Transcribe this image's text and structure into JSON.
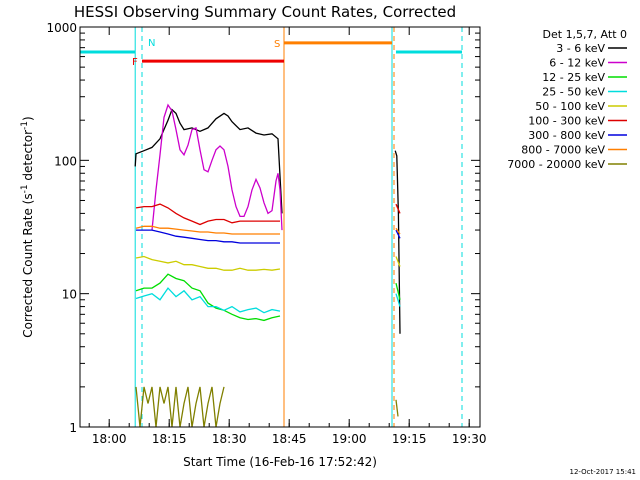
{
  "chart_data": {
    "type": "line",
    "title": "HESSI Observing Summary Count Rates, Corrected",
    "xlabel": "Start Time (16-Feb-16 17:52:42)",
    "ylabel": "Corrected Count Rate (s",
    "ylabel_sup1": "-1",
    "ylabel_mid": " detector",
    "ylabel_sup2": "-1",
    "ylabel_end": ")",
    "x_unit": "minutes since 17:52:42",
    "xlim": [
      0,
      100
    ],
    "ylim": [
      1,
      1000
    ],
    "y_scale": "log",
    "x_ticks": [
      {
        "label": "18:00",
        "value": 7.3
      },
      {
        "label": "18:15",
        "value": 22.3
      },
      {
        "label": "18:30",
        "value": 37.3
      },
      {
        "label": "18:45",
        "value": 52.3
      },
      {
        "label": "19:00",
        "value": 67.3
      },
      {
        "label": "19:15",
        "value": 82.3
      },
      {
        "label": "19:30",
        "value": 97.3
      }
    ],
    "y_ticks": [
      {
        "label": "1",
        "value": 1
      },
      {
        "label": "10",
        "value": 10
      },
      {
        "label": "100",
        "value": 100
      },
      {
        "label": "1000",
        "value": 1000
      }
    ],
    "legend_header": "Det 1,5,7, Att 0",
    "legend_position": "right",
    "series": [
      {
        "name": "3 - 6 keV",
        "color": "#000000",
        "x": [
          13.8,
          14,
          16,
          18,
          20,
          22,
          23,
          24,
          25,
          26,
          28,
          30,
          32,
          34,
          36,
          37,
          38,
          40,
          42,
          44,
          46,
          48,
          49.5,
          50.5
        ],
        "y": [
          90,
          112,
          118,
          125,
          145,
          200,
          240,
          225,
          190,
          170,
          175,
          165,
          175,
          205,
          225,
          215,
          195,
          170,
          175,
          160,
          155,
          158,
          145,
          40
        ],
        "x2": [
          78.8,
          79.2,
          79.6,
          80
        ],
        "y2": [
          118,
          108,
          40,
          5
        ]
      },
      {
        "name": "6 - 12 keV",
        "color": "#cc00cc",
        "x": [
          18,
          19,
          20,
          21,
          22,
          23,
          24,
          25,
          26,
          27,
          28,
          29,
          30,
          31,
          32,
          33,
          34,
          35,
          36,
          37,
          38,
          39,
          40,
          41,
          42,
          43,
          44,
          45,
          46,
          47,
          48,
          49,
          49.5,
          50,
          50.5
        ],
        "y": [
          30,
          60,
          110,
          210,
          260,
          235,
          170,
          120,
          110,
          130,
          170,
          175,
          120,
          85,
          82,
          100,
          120,
          128,
          120,
          90,
          60,
          45,
          38,
          38,
          45,
          60,
          72,
          62,
          48,
          40,
          42,
          70,
          80,
          60,
          30
        ]
      },
      {
        "name": "12 - 25 keV",
        "color": "#00dd00",
        "x": [
          14,
          16,
          18,
          20,
          22,
          24,
          26,
          28,
          30,
          32,
          34,
          36,
          38,
          40,
          42,
          44,
          46,
          48,
          50
        ],
        "y": [
          10.5,
          11,
          11,
          12,
          14,
          13,
          12.5,
          11,
          10.5,
          8.5,
          7.8,
          7.5,
          7.0,
          6.6,
          6.4,
          6.5,
          6.3,
          6.6,
          6.8
        ],
        "x2": [
          79,
          80
        ],
        "y2": [
          12,
          9
        ]
      },
      {
        "name": "25 - 50 keV",
        "color": "#00dddd",
        "x": [
          14,
          16,
          18,
          20,
          22,
          24,
          26,
          28,
          30,
          32,
          34,
          36,
          38,
          40,
          42,
          44,
          46,
          48,
          50
        ],
        "y": [
          9.2,
          9.6,
          10,
          9.0,
          11,
          9.5,
          10.5,
          9.0,
          9.5,
          8.0,
          8.0,
          7.5,
          8.0,
          7.3,
          7.6,
          7.8,
          7.2,
          7.6,
          7.4
        ],
        "x2": [
          79,
          80
        ],
        "y2": [
          10,
          8
        ]
      },
      {
        "name": "50 - 100 keV",
        "color": "#cccc00",
        "x": [
          14,
          16,
          18,
          20,
          22,
          24,
          26,
          28,
          30,
          32,
          34,
          36,
          38,
          40,
          42,
          44,
          46,
          48,
          50
        ],
        "y": [
          18.5,
          19,
          18,
          17.5,
          17,
          17.5,
          16.5,
          16.5,
          16,
          15.5,
          15.5,
          15,
          15,
          15.5,
          15,
          15,
          15.2,
          15,
          15.3
        ],
        "x2": [
          79,
          80
        ],
        "y2": [
          19,
          16
        ]
      },
      {
        "name": "100 - 300 keV",
        "color": "#dd0000",
        "x": [
          14,
          16,
          18,
          20,
          22,
          24,
          26,
          28,
          30,
          32,
          34,
          36,
          38,
          40,
          42,
          44,
          46,
          48,
          50
        ],
        "y": [
          44,
          45,
          45,
          47,
          44,
          40,
          37,
          35,
          33,
          35,
          36,
          36,
          34,
          35,
          35,
          35,
          35,
          35,
          35
        ],
        "x2": [
          79,
          80
        ],
        "y2": [
          47,
          40
        ]
      },
      {
        "name": "300 - 800 keV",
        "color": "#0000dd",
        "x": [
          14,
          16,
          18,
          20,
          22,
          24,
          26,
          28,
          30,
          32,
          34,
          36,
          38,
          40,
          42,
          44,
          46,
          48,
          50
        ],
        "y": [
          30,
          30,
          30,
          29,
          28,
          27,
          26.5,
          26,
          25.5,
          25,
          25,
          24.5,
          24.5,
          24,
          24,
          24,
          24,
          24,
          24
        ],
        "x2": [
          79,
          80
        ],
        "y2": [
          30,
          26
        ]
      },
      {
        "name": "800 - 7000 keV",
        "color": "#ff7f00",
        "x": [
          14,
          16,
          18,
          20,
          22,
          24,
          26,
          28,
          30,
          32,
          34,
          36,
          38,
          40,
          42,
          44,
          46,
          48,
          50
        ],
        "y": [
          31,
          32,
          32,
          31,
          31,
          30.5,
          30,
          29.5,
          29,
          29,
          28.5,
          28.5,
          28,
          28,
          28,
          28,
          28,
          28,
          28
        ],
        "x2": [
          79,
          80
        ],
        "y2": [
          31,
          28
        ]
      },
      {
        "name": "7000 - 20000 keV",
        "color": "#808000",
        "x": [
          14,
          15,
          16,
          17,
          18,
          19,
          20,
          21,
          22,
          23,
          24,
          25,
          26,
          27,
          28,
          29,
          30,
          31,
          32,
          33,
          34,
          35,
          36
        ],
        "y": [
          2,
          1,
          2,
          1.5,
          2,
          1,
          2,
          1.5,
          2,
          1,
          2,
          1,
          1.5,
          2,
          1,
          1.5,
          2,
          1,
          1.5,
          2,
          1,
          1.5,
          2
        ],
        "x2": [
          79,
          79.5
        ],
        "y2": [
          1.6,
          1.2
        ]
      }
    ],
    "intervals": [
      {
        "label": "",
        "color": "#00dddd",
        "x1": 0,
        "x2": 13.8,
        "level": 650
      },
      {
        "label": "N",
        "color": "#00dddd",
        "x1": 79,
        "x2": 95.5,
        "level": 650,
        "label_x": 15.5
      },
      {
        "label": "F",
        "color": "#ee0000",
        "x1": 15.5,
        "x2": 51,
        "level": 555
      },
      {
        "label": "S",
        "color": "#ff7f00",
        "x1": 51,
        "x2": 78,
        "level": 760
      }
    ],
    "vlines": [
      {
        "x": 13.8,
        "color": "#00dddd",
        "style": "solid"
      },
      {
        "x": 15.5,
        "color": "#00dddd",
        "style": "dashed"
      },
      {
        "x": 51,
        "color": "#ff7f00",
        "style": "solid"
      },
      {
        "x": 78,
        "color": "#00dddd",
        "style": "solid"
      },
      {
        "x": 78.5,
        "color": "#ff7f00",
        "style": "dashed"
      },
      {
        "x": 95.5,
        "color": "#00dddd",
        "style": "dashed"
      }
    ],
    "grid": false
  },
  "timestamp": "12-Oct-2017 15:41"
}
